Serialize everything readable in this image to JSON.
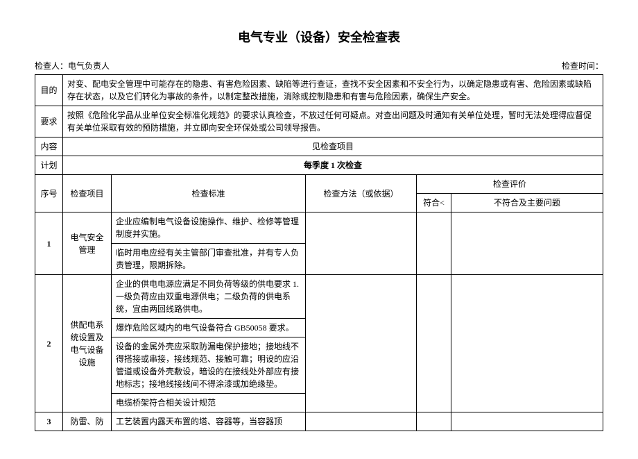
{
  "title": "电气专业（设备）安全检查表",
  "header": {
    "inspector_label": "检查人：",
    "inspector_value": "电气负责人",
    "time_label": "检查时间："
  },
  "meta_rows": {
    "purpose_label": "目的",
    "purpose_text": "对变、配电安全管理中可能存在的隐患、有害危险因素、缺陷等进行查证，查找不安全因素和不安全行为，以确定隐患或有害、危险因素或缺陷存在状态，以及它们转化为事故的条件，以制定整改措施，消除或控制隐患和有害与危险因素，确保生产安全。",
    "require_label": "要求",
    "require_text": "按照《危险化学品从业单位安全标准化规范》的要求认真检查，不放过任何可疑点。对查出问题及时通知有关单位处理，暂时无法处理得应督促有关单位采取有效的预防措施，并立即向安全环保处或公司领导报告。",
    "content_label": "内容",
    "content_text": "见检查项目",
    "plan_label": "计划",
    "plan_text": "每季度 1 次检查"
  },
  "columns": {
    "seq": "序号",
    "item": "检查项目",
    "standard": "检查标准",
    "method": "检查方法（或依据）",
    "eval": "检查评价",
    "conform": "符合<",
    "issue": "不符合及主要问题"
  },
  "rows": [
    {
      "seq": "1",
      "item": "电气安全管理",
      "standards": [
        "企业应编制电气设备设施操作、维护、检修等管理制度并实施。",
        "临时用电应经有关主管部门审查批准，并有专人负责管理，限期拆除。"
      ]
    },
    {
      "seq": "2",
      "item": "供配电系统设置及电气设备设施",
      "standards": [
        "企业的供电电源应满足不同负荷等级的供电要求 1.一级负荷应由双重电源供电；二级负荷的供电系统，宜由两回线路供电。",
        "爆炸危险区域内的电气设备符合 GB50058 要求。",
        "设备的金属外壳应采取防漏电保护接地；接地线不得搭接或串接，接线规范、接触可靠；明设的应沿管道或设备外壳敷设，暗设的在接线处外部应有接地标志；接地线接线间不得涂漆或加绝缘垫。",
        "电缆桥架符合相关设计规范"
      ]
    },
    {
      "seq": "3",
      "item": "防雷、防",
      "standards": [
        "工艺装置内露天布置的塔、容器等，当容器顶"
      ]
    }
  ]
}
